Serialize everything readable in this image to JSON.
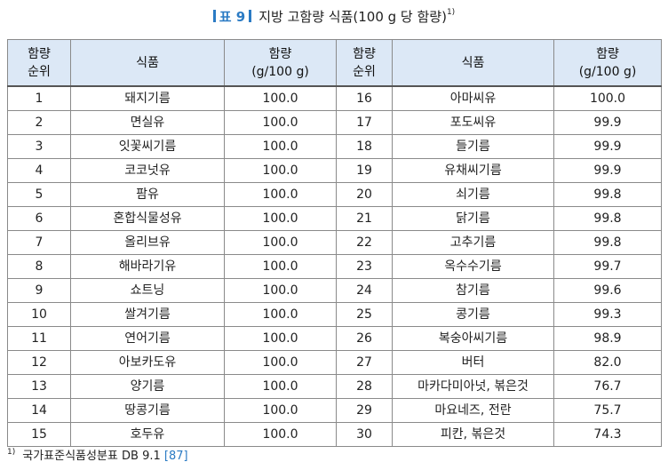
{
  "caption": {
    "label": "표 9",
    "title": "지방 고함량 식품(100 g 당 함량)",
    "note_mark": "1)"
  },
  "table": {
    "headers": {
      "rank": "함량\n순위",
      "food": "식품",
      "amount": "함량\n(g/100 g)"
    },
    "rows_left": [
      {
        "rank": "1",
        "food": "돼지기름",
        "amount": "100.0"
      },
      {
        "rank": "2",
        "food": "면실유",
        "amount": "100.0"
      },
      {
        "rank": "3",
        "food": "잇꽃씨기름",
        "amount": "100.0"
      },
      {
        "rank": "4",
        "food": "코코넛유",
        "amount": "100.0"
      },
      {
        "rank": "5",
        "food": "팜유",
        "amount": "100.0"
      },
      {
        "rank": "6",
        "food": "혼합식물성유",
        "amount": "100.0"
      },
      {
        "rank": "7",
        "food": "올리브유",
        "amount": "100.0"
      },
      {
        "rank": "8",
        "food": "해바라기유",
        "amount": "100.0"
      },
      {
        "rank": "9",
        "food": "쇼트닝",
        "amount": "100.0"
      },
      {
        "rank": "10",
        "food": "쌀겨기름",
        "amount": "100.0"
      },
      {
        "rank": "11",
        "food": "연어기름",
        "amount": "100.0"
      },
      {
        "rank": "12",
        "food": "아보카도유",
        "amount": "100.0"
      },
      {
        "rank": "13",
        "food": "양기름",
        "amount": "100.0"
      },
      {
        "rank": "14",
        "food": "땅콩기름",
        "amount": "100.0"
      },
      {
        "rank": "15",
        "food": "호두유",
        "amount": "100.0"
      }
    ],
    "rows_right": [
      {
        "rank": "16",
        "food": "아마씨유",
        "amount": "100.0"
      },
      {
        "rank": "17",
        "food": "포도씨유",
        "amount": "99.9"
      },
      {
        "rank": "18",
        "food": "들기름",
        "amount": "99.9"
      },
      {
        "rank": "19",
        "food": "유채씨기름",
        "amount": "99.9"
      },
      {
        "rank": "20",
        "food": "쇠기름",
        "amount": "99.8"
      },
      {
        "rank": "21",
        "food": "닭기름",
        "amount": "99.8"
      },
      {
        "rank": "22",
        "food": "고추기름",
        "amount": "99.8"
      },
      {
        "rank": "23",
        "food": "옥수수기름",
        "amount": "99.7"
      },
      {
        "rank": "24",
        "food": "참기름",
        "amount": "99.6"
      },
      {
        "rank": "25",
        "food": "콩기름",
        "amount": "99.3"
      },
      {
        "rank": "26",
        "food": "복숭아씨기름",
        "amount": "98.9"
      },
      {
        "rank": "27",
        "food": "버터",
        "amount": "82.0"
      },
      {
        "rank": "28",
        "food": "마카다미아넛, 볶은것",
        "amount": "76.7"
      },
      {
        "rank": "29",
        "food": "마요네즈, 전란",
        "amount": "75.7"
      },
      {
        "rank": "30",
        "food": "피칸, 볶은것",
        "amount": "74.3"
      }
    ]
  },
  "footnote": {
    "mark": "1)",
    "text": "국가표준식품성분표 DB 9.1",
    "ref": "[87]"
  },
  "colors": {
    "accent": "#2b7bc4",
    "header_bg": "#dce8f6",
    "border": "#8a8a8a"
  }
}
